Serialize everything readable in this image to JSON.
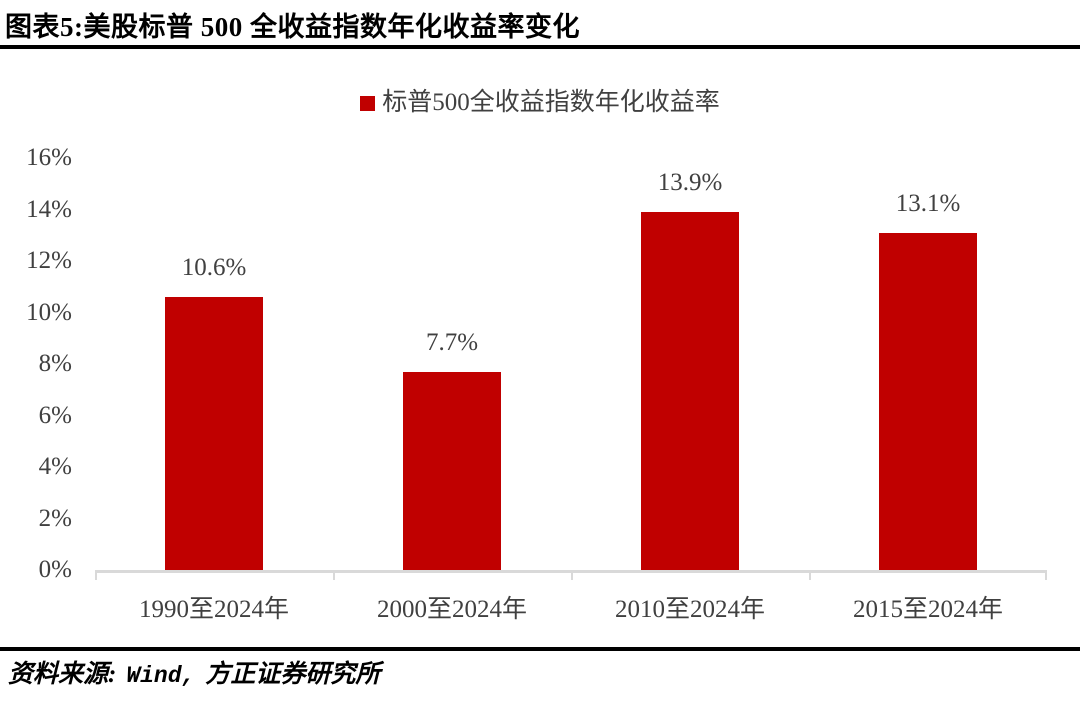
{
  "figure": {
    "title": "图表5:美股标普 500 全收益指数年化收益率变化"
  },
  "chart_data": {
    "type": "bar",
    "title": "美股标普 500 全收益指数年化收益率变化",
    "legend_label": "标普500全收益指数年化收益率",
    "legend_position": "top-center",
    "categories": [
      "1990至2024年",
      "2000至2024年",
      "2010至2024年",
      "2015至2024年"
    ],
    "values": [
      10.6,
      7.7,
      13.9,
      13.1
    ],
    "data_labels": [
      "10.6%",
      "7.7%",
      "13.9%",
      "13.1%"
    ],
    "xlabel": "",
    "ylabel": "",
    "ylim": [
      0,
      16
    ],
    "y_tick_step": 2,
    "y_ticks_top_to_bottom": [
      "16%",
      "14%",
      "12%",
      "10%",
      "8%",
      "6%",
      "4%",
      "2%",
      "0%"
    ],
    "grid": false,
    "bar_color": "#C00000",
    "axis_color": "#D9D9D9",
    "label_color": "#404040"
  },
  "source": {
    "prefix": "资料来源:",
    "vendor": "Wind,",
    "suffix": "方正证券研究所"
  }
}
